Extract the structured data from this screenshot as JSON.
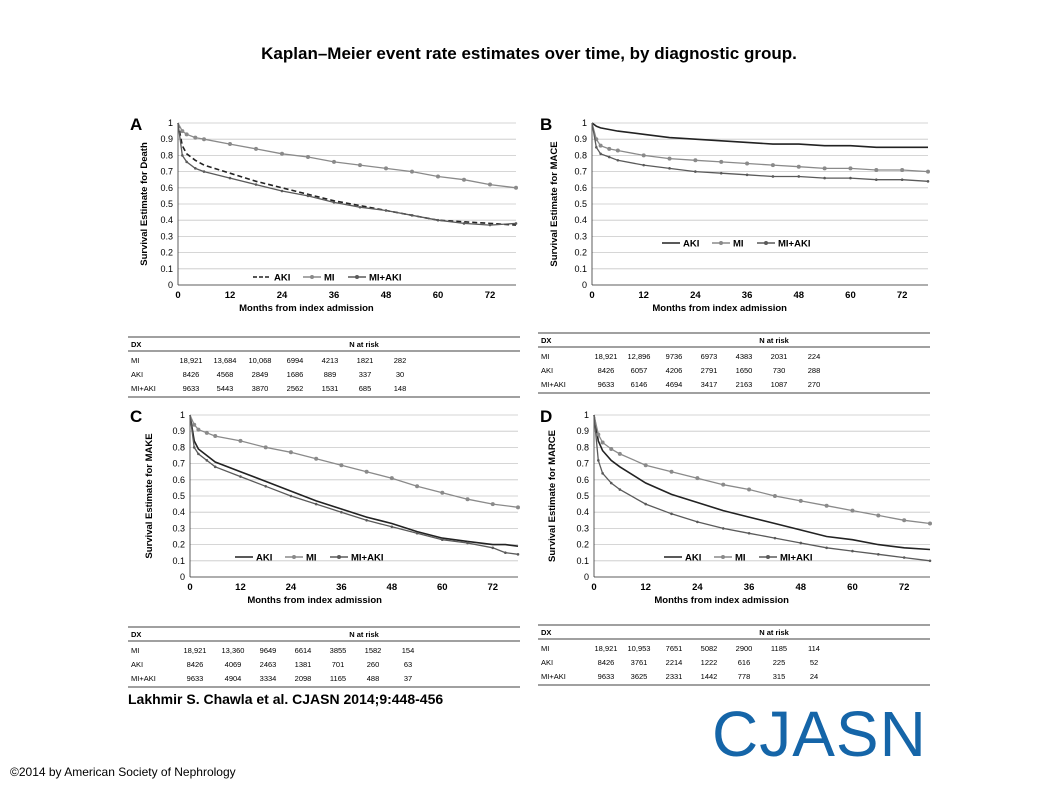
{
  "title": "Kaplan–Meier event rate estimates over time, by diagnostic group.",
  "citation": "Lakhmir S. Chawla et al. CJASN 2014;9:448-456",
  "copyright": "©2014 by American Society of Nephrology",
  "logo_text": "CJASN",
  "colors": {
    "AKI": "#222222",
    "MI": "#8a8a8a",
    "MI+AKI": "#5a5a5a",
    "grid": "#c8c8c8",
    "logo": "#1565a8"
  },
  "chart_data": [
    {
      "panel": "A",
      "type": "line",
      "ylabel": "Survival Estimate for Death",
      "xlabel": "Months from index admission",
      "xticks": [
        0,
        12,
        24,
        36,
        48,
        60,
        72
      ],
      "yticks": [
        0,
        0.1,
        0.2,
        0.3,
        0.4,
        0.5,
        0.6,
        0.7,
        0.8,
        0.9,
        1
      ],
      "xlim": [
        0,
        78
      ],
      "ylim": [
        0,
        1
      ],
      "grid": true,
      "legend": [
        "AKI",
        "MI",
        "MI+AKI"
      ],
      "series": [
        {
          "name": "AKI",
          "style": "dashed",
          "x": [
            0,
            1,
            2,
            4,
            6,
            12,
            18,
            24,
            30,
            36,
            42,
            48,
            54,
            60,
            66,
            72,
            78
          ],
          "y": [
            1,
            0.86,
            0.81,
            0.77,
            0.74,
            0.69,
            0.64,
            0.6,
            0.56,
            0.52,
            0.49,
            0.46,
            0.43,
            0.4,
            0.39,
            0.38,
            0.37
          ]
        },
        {
          "name": "MI",
          "style": "markers",
          "x": [
            0,
            1,
            2,
            4,
            6,
            12,
            18,
            24,
            30,
            36,
            42,
            48,
            54,
            60,
            66,
            72,
            78
          ],
          "y": [
            1,
            0.95,
            0.93,
            0.91,
            0.9,
            0.87,
            0.84,
            0.81,
            0.79,
            0.76,
            0.74,
            0.72,
            0.7,
            0.67,
            0.65,
            0.62,
            0.6
          ]
        },
        {
          "name": "MI+AKI",
          "style": "solid-marker",
          "x": [
            0,
            1,
            2,
            4,
            6,
            12,
            18,
            24,
            30,
            36,
            42,
            48,
            54,
            60,
            66,
            72,
            78
          ],
          "y": [
            1,
            0.8,
            0.76,
            0.72,
            0.7,
            0.66,
            0.62,
            0.58,
            0.55,
            0.51,
            0.48,
            0.46,
            0.43,
            0.4,
            0.38,
            0.37,
            0.38
          ]
        }
      ],
      "risk_table": {
        "header": [
          "DX",
          "N at risk"
        ],
        "rows": [
          {
            "dx": "MI",
            "values": [
              "18,921",
              "13,684",
              "10,068",
              "6994",
              "4213",
              "1821",
              "282"
            ]
          },
          {
            "dx": "AKI",
            "values": [
              "8426",
              "4568",
              "2849",
              "1686",
              "889",
              "337",
              "30"
            ]
          },
          {
            "dx": "MI+AKI",
            "values": [
              "9633",
              "5443",
              "3870",
              "2562",
              "1531",
              "685",
              "148"
            ]
          }
        ]
      }
    },
    {
      "panel": "B",
      "type": "line",
      "ylabel": "Survival Estimate for MACE",
      "xlabel": "Months from index admission",
      "xticks": [
        0,
        12,
        24,
        36,
        48,
        60,
        72
      ],
      "yticks": [
        0,
        0.1,
        0.2,
        0.3,
        0.4,
        0.5,
        0.6,
        0.7,
        0.8,
        0.9,
        1
      ],
      "xlim": [
        0,
        78
      ],
      "ylim": [
        0,
        1
      ],
      "grid": true,
      "legend": [
        "AKI",
        "MI",
        "MI+AKI"
      ],
      "series": [
        {
          "name": "AKI",
          "style": "solid",
          "x": [
            0,
            1,
            2,
            4,
            6,
            12,
            18,
            24,
            30,
            36,
            42,
            48,
            54,
            60,
            66,
            72,
            78
          ],
          "y": [
            1,
            0.98,
            0.97,
            0.96,
            0.95,
            0.93,
            0.91,
            0.9,
            0.89,
            0.88,
            0.87,
            0.87,
            0.86,
            0.86,
            0.85,
            0.85,
            0.85
          ]
        },
        {
          "name": "MI",
          "style": "markers",
          "x": [
            0,
            1,
            2,
            4,
            6,
            12,
            18,
            24,
            30,
            36,
            42,
            48,
            54,
            60,
            66,
            72,
            78
          ],
          "y": [
            1,
            0.9,
            0.86,
            0.84,
            0.83,
            0.8,
            0.78,
            0.77,
            0.76,
            0.75,
            0.74,
            0.73,
            0.72,
            0.72,
            0.71,
            0.71,
            0.7
          ]
        },
        {
          "name": "MI+AKI",
          "style": "solid-marker",
          "x": [
            0,
            1,
            2,
            4,
            6,
            12,
            18,
            24,
            30,
            36,
            42,
            48,
            54,
            60,
            66,
            72,
            78
          ],
          "y": [
            1,
            0.85,
            0.81,
            0.79,
            0.77,
            0.74,
            0.72,
            0.7,
            0.69,
            0.68,
            0.67,
            0.67,
            0.66,
            0.66,
            0.65,
            0.65,
            0.64
          ]
        }
      ],
      "risk_table": {
        "header": [
          "DX",
          "N at risk"
        ],
        "rows": [
          {
            "dx": "MI",
            "values": [
              "18,921",
              "12,896",
              "9736",
              "6973",
              "4383",
              "2031",
              "224"
            ]
          },
          {
            "dx": "AKI",
            "values": [
              "8426",
              "6057",
              "4206",
              "2791",
              "1650",
              "730",
              "288"
            ]
          },
          {
            "dx": "MI+AKI",
            "values": [
              "9633",
              "6146",
              "4694",
              "3417",
              "2163",
              "1087",
              "270"
            ]
          }
        ]
      }
    },
    {
      "panel": "C",
      "type": "line",
      "ylabel": "Survival Estimate for MAKE",
      "xlabel": "Months from index admission",
      "xticks": [
        0,
        12,
        24,
        36,
        48,
        60,
        72
      ],
      "yticks": [
        0,
        0.1,
        0.2,
        0.3,
        0.4,
        0.5,
        0.6,
        0.7,
        0.8,
        0.9,
        1
      ],
      "xlim": [
        0,
        78
      ],
      "ylim": [
        0,
        1
      ],
      "grid": true,
      "legend": [
        "AKI",
        "MI",
        "MI+AKI"
      ],
      "series": [
        {
          "name": "AKI",
          "style": "solid",
          "x": [
            0,
            1,
            2,
            4,
            6,
            12,
            18,
            24,
            30,
            36,
            42,
            48,
            54,
            60,
            66,
            72,
            75,
            78
          ],
          "y": [
            1,
            0.84,
            0.79,
            0.75,
            0.71,
            0.65,
            0.59,
            0.53,
            0.47,
            0.42,
            0.37,
            0.33,
            0.28,
            0.24,
            0.22,
            0.2,
            0.2,
            0.19
          ]
        },
        {
          "name": "MI",
          "style": "markers",
          "x": [
            0,
            1,
            2,
            4,
            6,
            12,
            18,
            24,
            30,
            36,
            42,
            48,
            54,
            60,
            66,
            72,
            78
          ],
          "y": [
            1,
            0.94,
            0.91,
            0.89,
            0.87,
            0.84,
            0.8,
            0.77,
            0.73,
            0.69,
            0.65,
            0.61,
            0.56,
            0.52,
            0.48,
            0.45,
            0.43
          ]
        },
        {
          "name": "MI+AKI",
          "style": "solid-marker",
          "x": [
            0,
            1,
            2,
            4,
            6,
            12,
            18,
            24,
            30,
            36,
            42,
            48,
            54,
            60,
            66,
            72,
            75,
            78
          ],
          "y": [
            1,
            0.8,
            0.76,
            0.72,
            0.68,
            0.62,
            0.56,
            0.5,
            0.45,
            0.4,
            0.35,
            0.31,
            0.27,
            0.23,
            0.21,
            0.18,
            0.15,
            0.14
          ]
        }
      ],
      "risk_table": {
        "header": [
          "DX",
          "N at risk"
        ],
        "rows": [
          {
            "dx": "MI",
            "values": [
              "18,921",
              "13,360",
              "9649",
              "6614",
              "3855",
              "1582",
              "154"
            ]
          },
          {
            "dx": "AKI",
            "values": [
              "8426",
              "4069",
              "2463",
              "1381",
              "701",
              "260",
              "63"
            ]
          },
          {
            "dx": "MI+AKI",
            "values": [
              "9633",
              "4904",
              "3334",
              "2098",
              "1165",
              "488",
              "37"
            ]
          }
        ]
      }
    },
    {
      "panel": "D",
      "type": "line",
      "ylabel": "Survival Estimate for MARCE",
      "xlabel": "Months from index admission",
      "xticks": [
        0,
        12,
        24,
        36,
        48,
        60,
        72
      ],
      "yticks": [
        0,
        0.1,
        0.2,
        0.3,
        0.4,
        0.5,
        0.6,
        0.7,
        0.8,
        0.9,
        1
      ],
      "xlim": [
        0,
        78
      ],
      "ylim": [
        0,
        1
      ],
      "grid": true,
      "legend": [
        "AKI",
        "MI",
        "MI+AKI"
      ],
      "series": [
        {
          "name": "AKI",
          "style": "solid",
          "x": [
            0,
            1,
            2,
            4,
            6,
            12,
            18,
            24,
            30,
            36,
            42,
            48,
            54,
            60,
            66,
            72,
            78
          ],
          "y": [
            1,
            0.84,
            0.78,
            0.72,
            0.68,
            0.58,
            0.51,
            0.46,
            0.41,
            0.37,
            0.33,
            0.29,
            0.25,
            0.23,
            0.2,
            0.18,
            0.17
          ]
        },
        {
          "name": "MI",
          "style": "markers",
          "x": [
            0,
            1,
            2,
            4,
            6,
            12,
            18,
            24,
            30,
            36,
            42,
            48,
            54,
            60,
            66,
            72,
            78
          ],
          "y": [
            1,
            0.88,
            0.83,
            0.79,
            0.76,
            0.69,
            0.65,
            0.61,
            0.57,
            0.54,
            0.5,
            0.47,
            0.44,
            0.41,
            0.38,
            0.35,
            0.33
          ]
        },
        {
          "name": "MI+AKI",
          "style": "solid-marker",
          "x": [
            0,
            1,
            2,
            4,
            6,
            12,
            18,
            24,
            30,
            36,
            42,
            48,
            54,
            60,
            66,
            72,
            78
          ],
          "y": [
            1,
            0.72,
            0.64,
            0.58,
            0.54,
            0.45,
            0.39,
            0.34,
            0.3,
            0.27,
            0.24,
            0.21,
            0.18,
            0.16,
            0.14,
            0.12,
            0.1
          ]
        }
      ],
      "risk_table": {
        "header": [
          "DX",
          "N at risk"
        ],
        "rows": [
          {
            "dx": "MI",
            "values": [
              "18,921",
              "10,953",
              "7651",
              "5082",
              "2900",
              "1185",
              "114"
            ]
          },
          {
            "dx": "AKI",
            "values": [
              "8426",
              "3761",
              "2214",
              "1222",
              "616",
              "225",
              "52"
            ]
          },
          {
            "dx": "MI+AKI",
            "values": [
              "9633",
              "3625",
              "2331",
              "1442",
              "778",
              "315",
              "24"
            ]
          }
        ]
      }
    }
  ]
}
